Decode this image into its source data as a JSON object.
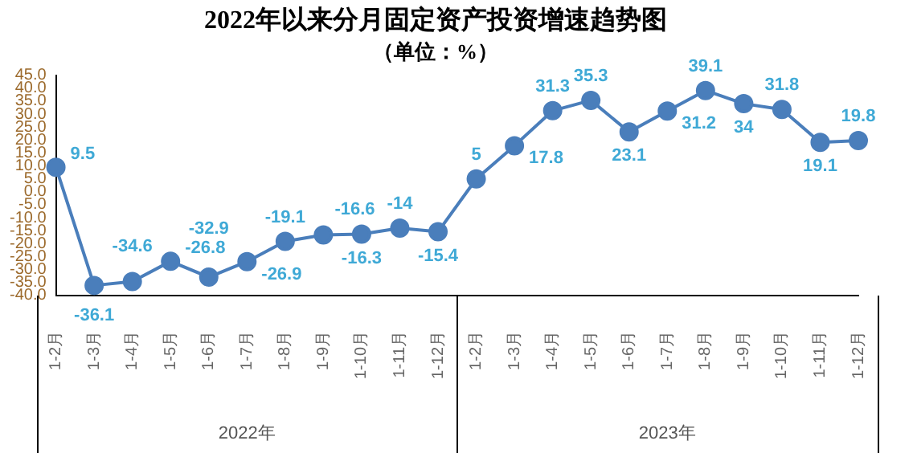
{
  "chart_data": {
    "type": "line",
    "title": "2022年以来分月固定资产投资增速趋势图",
    "subtitle": "（单位：%）",
    "categories": [
      "1-2月",
      "1-3月",
      "1-4月",
      "1-5月",
      "1-6月",
      "1-7月",
      "1-8月",
      "1-9月",
      "1-10月",
      "1-11月",
      "1-12月",
      "1-2月",
      "1-3月",
      "1-4月",
      "1-5月",
      "1-6月",
      "1-7月",
      "1-8月",
      "1-9月",
      "1-10月",
      "1-11月",
      "1-12月"
    ],
    "series": [
      {
        "color": "#4a7ebb",
        "values": [
          9.5,
          -36.1,
          -34.6,
          -26.8,
          -32.9,
          -26.9,
          -19.1,
          -16.6,
          -16.3,
          -14,
          -15.4,
          5,
          17.8,
          31.3,
          35.3,
          23.1,
          31.2,
          39.1,
          34,
          31.8,
          19.1,
          19.8
        ]
      }
    ],
    "ylim": [
      -40,
      45
    ],
    "yticks": [
      {
        "value": -40,
        "label": "-40.0"
      },
      {
        "value": -35,
        "label": "-35.0"
      },
      {
        "value": -30,
        "label": "-30.0"
      },
      {
        "value": -25,
        "label": "-25.0"
      },
      {
        "value": -20,
        "label": "-20.0"
      },
      {
        "value": -15,
        "label": "-15.0"
      },
      {
        "value": -10,
        "label": "-10.0"
      },
      {
        "value": -5,
        "label": "-5.0"
      },
      {
        "value": 0,
        "label": "0.0"
      },
      {
        "value": 5,
        "label": "5.0"
      },
      {
        "value": 10,
        "label": "10.0"
      },
      {
        "value": 15,
        "label": "15.0"
      },
      {
        "value": 20,
        "label": "20.0"
      },
      {
        "value": 25,
        "label": "25.0"
      },
      {
        "value": 30,
        "label": "30.0"
      },
      {
        "value": 35,
        "label": "35.0"
      },
      {
        "value": 40,
        "label": "40.0"
      },
      {
        "value": 45,
        "label": "45.0"
      }
    ],
    "annotations": [
      "2022年",
      "2023年"
    ],
    "data_labels": true,
    "grid": false,
    "legend": false,
    "marker": "circle",
    "line_style": "solid"
  }
}
